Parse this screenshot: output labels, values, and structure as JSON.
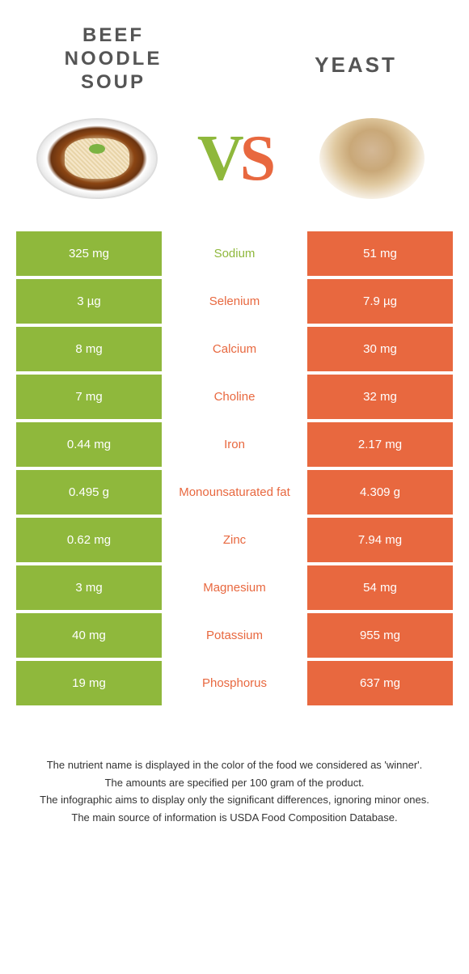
{
  "header": {
    "left_title": "BEEF NOODLE SOUP",
    "right_title": "YEAST",
    "vs_v": "V",
    "vs_s": "S"
  },
  "colors": {
    "green": "#8fb83c",
    "orange": "#e8683f",
    "text": "#333333",
    "bg": "#ffffff"
  },
  "rows": [
    {
      "left": "325 mg",
      "label": "Sodium",
      "right": "51 mg",
      "winner": "left"
    },
    {
      "left": "3 µg",
      "label": "Selenium",
      "right": "7.9 µg",
      "winner": "right"
    },
    {
      "left": "8 mg",
      "label": "Calcium",
      "right": "30 mg",
      "winner": "right"
    },
    {
      "left": "7 mg",
      "label": "Choline",
      "right": "32 mg",
      "winner": "right"
    },
    {
      "left": "0.44 mg",
      "label": "Iron",
      "right": "2.17 mg",
      "winner": "right"
    },
    {
      "left": "0.495 g",
      "label": "Monounsaturated fat",
      "right": "4.309 g",
      "winner": "right"
    },
    {
      "left": "0.62 mg",
      "label": "Zinc",
      "right": "7.94 mg",
      "winner": "right"
    },
    {
      "left": "3 mg",
      "label": "Magnesium",
      "right": "54 mg",
      "winner": "right"
    },
    {
      "left": "40 mg",
      "label": "Potassium",
      "right": "955 mg",
      "winner": "right"
    },
    {
      "left": "19 mg",
      "label": "Phosphorus",
      "right": "637 mg",
      "winner": "right"
    }
  ],
  "footer": {
    "line1": "The nutrient name is displayed in the color of the food we considered as 'winner'.",
    "line2": "The amounts are specified per 100 gram of the product.",
    "line3": "The infographic aims to display only the significant differences, ignoring minor ones.",
    "line4": "The main source of information is USDA Food Composition Database."
  }
}
